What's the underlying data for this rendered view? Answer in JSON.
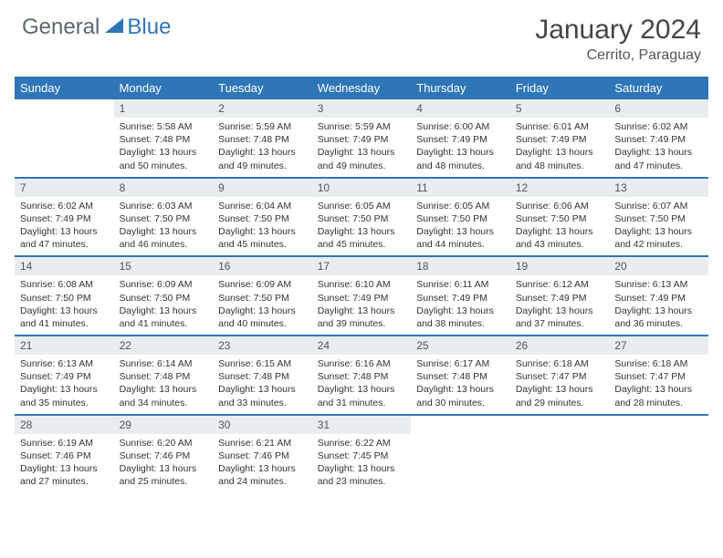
{
  "brand": {
    "a": "General",
    "b": "Blue"
  },
  "title": "January 2024",
  "location": "Cerrito, Paraguay",
  "colors": {
    "accent": "#2f76b8",
    "daynum_bg": "#e9edef",
    "text": "#333333",
    "header_text": "#ffffff"
  },
  "weekdays": [
    "Sunday",
    "Monday",
    "Tuesday",
    "Wednesday",
    "Thursday",
    "Friday",
    "Saturday"
  ],
  "weeks": [
    [
      null,
      {
        "n": "1",
        "sr": "5:58 AM",
        "ss": "7:48 PM",
        "dl": "13 hours and 50 minutes."
      },
      {
        "n": "2",
        "sr": "5:59 AM",
        "ss": "7:48 PM",
        "dl": "13 hours and 49 minutes."
      },
      {
        "n": "3",
        "sr": "5:59 AM",
        "ss": "7:49 PM",
        "dl": "13 hours and 49 minutes."
      },
      {
        "n": "4",
        "sr": "6:00 AM",
        "ss": "7:49 PM",
        "dl": "13 hours and 48 minutes."
      },
      {
        "n": "5",
        "sr": "6:01 AM",
        "ss": "7:49 PM",
        "dl": "13 hours and 48 minutes."
      },
      {
        "n": "6",
        "sr": "6:02 AM",
        "ss": "7:49 PM",
        "dl": "13 hours and 47 minutes."
      }
    ],
    [
      {
        "n": "7",
        "sr": "6:02 AM",
        "ss": "7:49 PM",
        "dl": "13 hours and 47 minutes."
      },
      {
        "n": "8",
        "sr": "6:03 AM",
        "ss": "7:50 PM",
        "dl": "13 hours and 46 minutes."
      },
      {
        "n": "9",
        "sr": "6:04 AM",
        "ss": "7:50 PM",
        "dl": "13 hours and 45 minutes."
      },
      {
        "n": "10",
        "sr": "6:05 AM",
        "ss": "7:50 PM",
        "dl": "13 hours and 45 minutes."
      },
      {
        "n": "11",
        "sr": "6:05 AM",
        "ss": "7:50 PM",
        "dl": "13 hours and 44 minutes."
      },
      {
        "n": "12",
        "sr": "6:06 AM",
        "ss": "7:50 PM",
        "dl": "13 hours and 43 minutes."
      },
      {
        "n": "13",
        "sr": "6:07 AM",
        "ss": "7:50 PM",
        "dl": "13 hours and 42 minutes."
      }
    ],
    [
      {
        "n": "14",
        "sr": "6:08 AM",
        "ss": "7:50 PM",
        "dl": "13 hours and 41 minutes."
      },
      {
        "n": "15",
        "sr": "6:09 AM",
        "ss": "7:50 PM",
        "dl": "13 hours and 41 minutes."
      },
      {
        "n": "16",
        "sr": "6:09 AM",
        "ss": "7:50 PM",
        "dl": "13 hours and 40 minutes."
      },
      {
        "n": "17",
        "sr": "6:10 AM",
        "ss": "7:49 PM",
        "dl": "13 hours and 39 minutes."
      },
      {
        "n": "18",
        "sr": "6:11 AM",
        "ss": "7:49 PM",
        "dl": "13 hours and 38 minutes."
      },
      {
        "n": "19",
        "sr": "6:12 AM",
        "ss": "7:49 PM",
        "dl": "13 hours and 37 minutes."
      },
      {
        "n": "20",
        "sr": "6:13 AM",
        "ss": "7:49 PM",
        "dl": "13 hours and 36 minutes."
      }
    ],
    [
      {
        "n": "21",
        "sr": "6:13 AM",
        "ss": "7:49 PM",
        "dl": "13 hours and 35 minutes."
      },
      {
        "n": "22",
        "sr": "6:14 AM",
        "ss": "7:48 PM",
        "dl": "13 hours and 34 minutes."
      },
      {
        "n": "23",
        "sr": "6:15 AM",
        "ss": "7:48 PM",
        "dl": "13 hours and 33 minutes."
      },
      {
        "n": "24",
        "sr": "6:16 AM",
        "ss": "7:48 PM",
        "dl": "13 hours and 31 minutes."
      },
      {
        "n": "25",
        "sr": "6:17 AM",
        "ss": "7:48 PM",
        "dl": "13 hours and 30 minutes."
      },
      {
        "n": "26",
        "sr": "6:18 AM",
        "ss": "7:47 PM",
        "dl": "13 hours and 29 minutes."
      },
      {
        "n": "27",
        "sr": "6:18 AM",
        "ss": "7:47 PM",
        "dl": "13 hours and 28 minutes."
      }
    ],
    [
      {
        "n": "28",
        "sr": "6:19 AM",
        "ss": "7:46 PM",
        "dl": "13 hours and 27 minutes."
      },
      {
        "n": "29",
        "sr": "6:20 AM",
        "ss": "7:46 PM",
        "dl": "13 hours and 25 minutes."
      },
      {
        "n": "30",
        "sr": "6:21 AM",
        "ss": "7:46 PM",
        "dl": "13 hours and 24 minutes."
      },
      {
        "n": "31",
        "sr": "6:22 AM",
        "ss": "7:45 PM",
        "dl": "13 hours and 23 minutes."
      },
      null,
      null,
      null
    ]
  ],
  "labels": {
    "sunrise": "Sunrise: ",
    "sunset": "Sunset: ",
    "daylight": "Daylight: "
  }
}
